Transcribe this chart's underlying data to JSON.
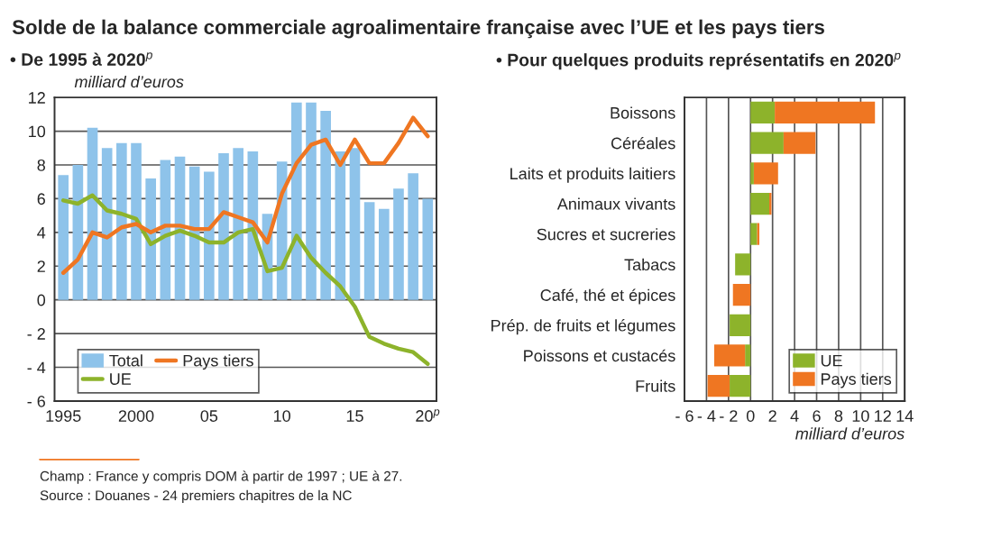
{
  "chart_data": [
    {
      "type": "bar",
      "title": "Solde de la balance commerciale agroalimentaire française avec l’UE et les pays tiers",
      "subtitle": "• De 1995 à 2020$^{p}$",
      "ylabel": "milliard d’euros",
      "categories": [
        "1995",
        null,
        null,
        null,
        null,
        "2000",
        null,
        null,
        null,
        null,
        "05",
        null,
        null,
        null,
        null,
        "10",
        null,
        null,
        null,
        null,
        "15",
        null,
        null,
        null,
        null,
        "20$^{p}$"
      ],
      "series": [
        {
          "name": "Total",
          "color": "#8ec3ea",
          "values": [
            7.4,
            8.0,
            10.2,
            9.0,
            9.3,
            9.3,
            7.2,
            8.3,
            8.5,
            7.9,
            7.6,
            8.7,
            9.0,
            8.8,
            5.1,
            8.2,
            11.7,
            11.7,
            11.2,
            8.8,
            9.0,
            5.8,
            5.4,
            6.6,
            7.5,
            6.0
          ]
        },
        {
          "name": "UE",
          "type": "line",
          "color": "#8db32b",
          "values": [
            5.9,
            5.7,
            6.2,
            5.3,
            5.1,
            4.8,
            3.3,
            3.8,
            4.1,
            3.8,
            3.4,
            3.4,
            4.0,
            4.2,
            1.7,
            1.9,
            3.8,
            2.5,
            1.6,
            0.8,
            -0.4,
            -2.2,
            -2.6,
            -2.9,
            -3.1,
            -3.8
          ]
        },
        {
          "name": "Pays tiers",
          "type": "line",
          "color": "#ef7622",
          "values": [
            1.6,
            2.4,
            4.0,
            3.7,
            4.3,
            4.5,
            4.0,
            4.4,
            4.4,
            4.2,
            4.2,
            5.2,
            4.9,
            4.6,
            3.4,
            6.3,
            8.1,
            9.2,
            9.5,
            8.0,
            9.5,
            8.1,
            8.1,
            9.3,
            10.8,
            9.7
          ]
        }
      ],
      "ylim": [
        -6,
        12
      ],
      "yticks": [
        {
          "value": -6,
          "label": "- 6"
        },
        {
          "value": -4,
          "label": "- 4"
        },
        {
          "value": -2,
          "label": "- 2"
        },
        0,
        2,
        4,
        6,
        8,
        10,
        12
      ],
      "grid": "y",
      "legend": "bottom left",
      "annotations": [
        "Champ : France y compris DOM à partir de 1997 ; UE à 27.",
        "Source : Douanes - 24 premiers chapitres de la NC"
      ]
    },
    {
      "type": "bar",
      "title": "• Pour quelques produits représentatifs en 2020$^{p}$",
      "xlabel": "milliard d’euros",
      "orientation": "horizontal",
      "stacked": true,
      "categories": [
        "Boissons",
        "Céréales",
        "Laits et produits laitiers",
        "Animaux vivants",
        "Sucres et sucreries",
        "Tabacs",
        "Café, thé et épices",
        "Prép. de fruits et légumes",
        "Poissons et custacés",
        "Fruits"
      ],
      "series": [
        {
          "name": "UE",
          "color": "#8db32b",
          "values": [
            2.2,
            3.0,
            0.3,
            1.7,
            0.6,
            -1.4,
            null,
            -1.9,
            -0.5,
            -1.9
          ]
        },
        {
          "name": "Pays tiers",
          "color": "#ef7622",
          "values": [
            9.1,
            2.9,
            2.2,
            0.2,
            0.2,
            null,
            -1.6,
            null,
            -2.8,
            -2.0
          ]
        }
      ],
      "xlim": [
        -6,
        14
      ],
      "xticks": [
        {
          "value": -6,
          "label": "- 6"
        },
        {
          "value": -4,
          "label": "- 4"
        },
        {
          "value": -2,
          "label": "- 2"
        },
        0,
        2,
        4,
        6,
        8,
        10,
        12,
        14
      ],
      "grid": "x",
      "legend": "bottom right"
    }
  ]
}
